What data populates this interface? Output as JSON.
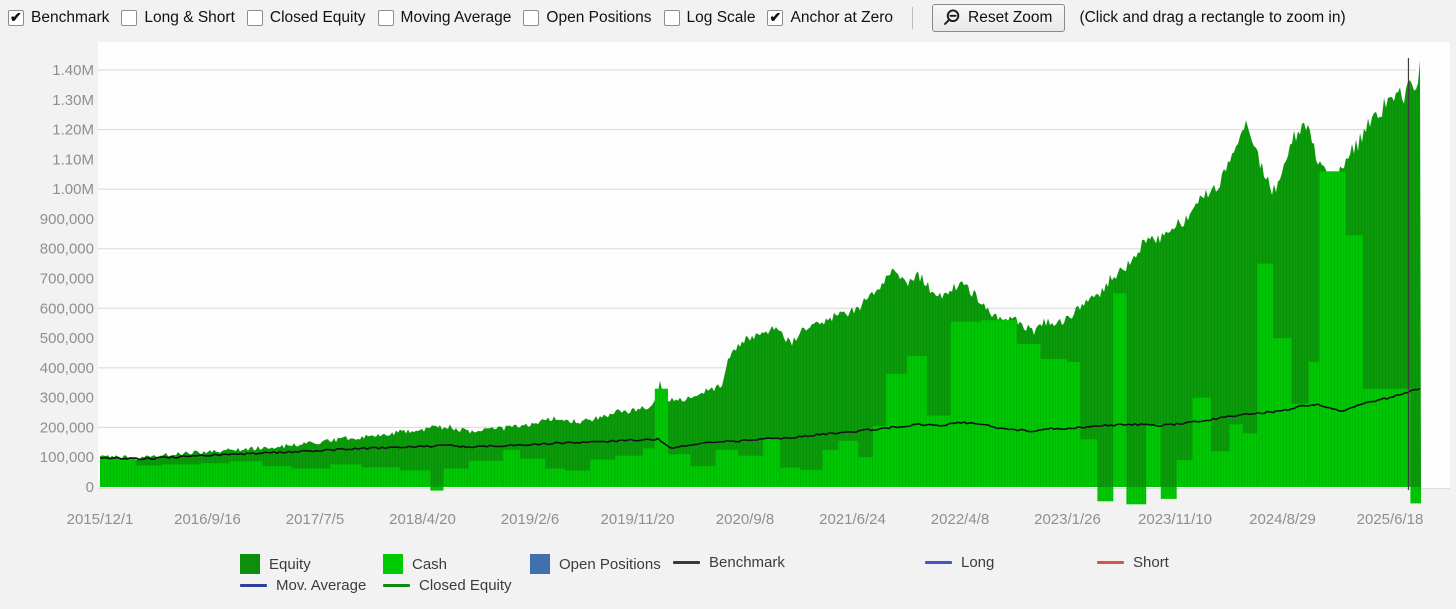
{
  "toolbar": {
    "checkboxes": [
      {
        "id": "benchmark",
        "label": "Benchmark",
        "checked": true
      },
      {
        "id": "long-short",
        "label": "Long & Short",
        "checked": false
      },
      {
        "id": "closed-equity",
        "label": "Closed Equity",
        "checked": false
      },
      {
        "id": "moving-average",
        "label": "Moving Average",
        "checked": false
      },
      {
        "id": "open-positions",
        "label": "Open Positions",
        "checked": false
      },
      {
        "id": "log-scale",
        "label": "Log Scale",
        "checked": false
      },
      {
        "id": "anchor-at-zero",
        "label": "Anchor at Zero",
        "checked": true
      }
    ],
    "reset_zoom": {
      "label": "Reset Zoom"
    },
    "hint": "(Click and drag a rectangle to zoom in)"
  },
  "chart_data": {
    "type": "area",
    "title": "",
    "grid": "horizontal, every 200,000",
    "y_axis": {
      "min": 0,
      "max": 1400000,
      "ticks": [
        {
          "v": 0,
          "label": "0"
        },
        {
          "v": 100000,
          "label": "100,000"
        },
        {
          "v": 200000,
          "label": "200,000"
        },
        {
          "v": 300000,
          "label": "300,000"
        },
        {
          "v": 400000,
          "label": "400,000"
        },
        {
          "v": 500000,
          "label": "500,000"
        },
        {
          "v": 600000,
          "label": "600,000"
        },
        {
          "v": 700000,
          "label": "700,000"
        },
        {
          "v": 800000,
          "label": "800,000"
        },
        {
          "v": 900000,
          "label": "900,000"
        },
        {
          "v": 1000000,
          "label": "1.00M"
        },
        {
          "v": 1100000,
          "label": "1.10M"
        },
        {
          "v": 1200000,
          "label": "1.20M"
        },
        {
          "v": 1300000,
          "label": "1.30M"
        },
        {
          "v": 1400000,
          "label": "1.40M"
        }
      ]
    },
    "x_axis": {
      "tick_labels": [
        "2015/12/1",
        "2016/9/16",
        "2017/7/5",
        "2018/4/20",
        "2019/2/6",
        "2019/11/20",
        "2020/9/8",
        "2021/6/24",
        "2022/4/8",
        "2023/1/26",
        "2023/11/10",
        "2024/8/29",
        "2025/6/18"
      ]
    },
    "series": [
      {
        "name": "Equity",
        "kind": "area",
        "color": "#0a9a0a",
        "points": [
          [
            0,
            100000
          ],
          [
            0.015,
            101000
          ],
          [
            0.03,
            96000
          ],
          [
            0.045,
            106000
          ],
          [
            0.061,
            112000
          ],
          [
            0.081,
            118000
          ],
          [
            0.098,
            124000
          ],
          [
            0.117,
            130000
          ],
          [
            0.136,
            136000
          ],
          [
            0.152,
            142000
          ],
          [
            0.163,
            150000
          ],
          [
            0.178,
            158000
          ],
          [
            0.193,
            166000
          ],
          [
            0.208,
            172000
          ],
          [
            0.223,
            182000
          ],
          [
            0.235,
            188000
          ],
          [
            0.244,
            193000
          ],
          [
            0.254,
            200000
          ],
          [
            0.265,
            202000
          ],
          [
            0.277,
            188000
          ],
          [
            0.288,
            186000
          ],
          [
            0.299,
            194000
          ],
          [
            0.311,
            200000
          ],
          [
            0.322,
            208000
          ],
          [
            0.333,
            218000
          ],
          [
            0.345,
            232000
          ],
          [
            0.355,
            222000
          ],
          [
            0.364,
            216000
          ],
          [
            0.373,
            228000
          ],
          [
            0.383,
            238000
          ],
          [
            0.392,
            252000
          ],
          [
            0.403,
            258000
          ],
          [
            0.413,
            266000
          ],
          [
            0.42,
            285000
          ],
          [
            0.424,
            350000
          ],
          [
            0.429,
            300000
          ],
          [
            0.436,
            288000
          ],
          [
            0.445,
            298000
          ],
          [
            0.455,
            315000
          ],
          [
            0.464,
            330000
          ],
          [
            0.471,
            345000
          ],
          [
            0.476,
            430000
          ],
          [
            0.482,
            470000
          ],
          [
            0.489,
            495000
          ],
          [
            0.496,
            512000
          ],
          [
            0.504,
            520000
          ],
          [
            0.511,
            528000
          ],
          [
            0.519,
            500000
          ],
          [
            0.524,
            482000
          ],
          [
            0.53,
            530000
          ],
          [
            0.538,
            545000
          ],
          [
            0.547,
            558000
          ],
          [
            0.557,
            572000
          ],
          [
            0.564,
            580000
          ],
          [
            0.57,
            592000
          ],
          [
            0.577,
            615000
          ],
          [
            0.585,
            650000
          ],
          [
            0.592,
            690000
          ],
          [
            0.601,
            740000
          ],
          [
            0.606,
            715000
          ],
          [
            0.612,
            690000
          ],
          [
            0.617,
            715000
          ],
          [
            0.623,
            700000
          ],
          [
            0.629,
            665000
          ],
          [
            0.635,
            640000
          ],
          [
            0.641,
            655000
          ],
          [
            0.648,
            670000
          ],
          [
            0.653,
            700000
          ],
          [
            0.659,
            660000
          ],
          [
            0.665,
            625000
          ],
          [
            0.671,
            595000
          ],
          [
            0.678,
            580000
          ],
          [
            0.684,
            560000
          ],
          [
            0.691,
            572000
          ],
          [
            0.698,
            545000
          ],
          [
            0.706,
            518000
          ],
          [
            0.714,
            560000
          ],
          [
            0.721,
            548000
          ],
          [
            0.729,
            556000
          ],
          [
            0.735,
            565000
          ],
          [
            0.742,
            612000
          ],
          [
            0.75,
            640000
          ],
          [
            0.758,
            652000
          ],
          [
            0.765,
            700000
          ],
          [
            0.773,
            722000
          ],
          [
            0.78,
            762000
          ],
          [
            0.788,
            812000
          ],
          [
            0.795,
            842000
          ],
          [
            0.802,
            825000
          ],
          [
            0.809,
            848000
          ],
          [
            0.814,
            872000
          ],
          [
            0.822,
            902000
          ],
          [
            0.83,
            952000
          ],
          [
            0.837,
            982000
          ],
          [
            0.845,
            1012000
          ],
          [
            0.852,
            1055000
          ],
          [
            0.86,
            1125000
          ],
          [
            0.867,
            1218000
          ],
          [
            0.873,
            1160000
          ],
          [
            0.877,
            1105000
          ],
          [
            0.883,
            1048000
          ],
          [
            0.888,
            985000
          ],
          [
            0.894,
            1065000
          ],
          [
            0.899,
            1125000
          ],
          [
            0.905,
            1185000
          ],
          [
            0.911,
            1235000
          ],
          [
            0.917,
            1180000
          ],
          [
            0.923,
            1085000
          ],
          [
            0.929,
            1050000
          ],
          [
            0.935,
            1028000
          ],
          [
            0.941,
            1075000
          ],
          [
            0.947,
            1120000
          ],
          [
            0.953,
            1160000
          ],
          [
            0.959,
            1205000
          ],
          [
            0.965,
            1240000
          ],
          [
            0.971,
            1270000
          ],
          [
            0.977,
            1310000
          ],
          [
            0.983,
            1330000
          ],
          [
            0.988,
            1298000
          ],
          [
            0.991,
            1345000
          ],
          [
            0.995,
            1320000
          ],
          [
            0.998,
            1380000
          ],
          [
            1,
            1420000
          ]
        ]
      },
      {
        "name": "Cash",
        "kind": "bars",
        "color": "#00c603",
        "segments": [
          [
            0,
            0.027,
            95000
          ],
          [
            0.027,
            0.047,
            72000
          ],
          [
            0.047,
            0.076,
            76000
          ],
          [
            0.076,
            0.098,
            80000
          ],
          [
            0.098,
            0.123,
            86000
          ],
          [
            0.123,
            0.145,
            70000
          ],
          [
            0.145,
            0.174,
            62000
          ],
          [
            0.174,
            0.198,
            76000
          ],
          [
            0.198,
            0.227,
            66000
          ],
          [
            0.227,
            0.25,
            56000
          ],
          [
            0.25,
            0.26,
            -12000
          ],
          [
            0.26,
            0.279,
            62000
          ],
          [
            0.279,
            0.305,
            88000
          ],
          [
            0.305,
            0.318,
            125000
          ],
          [
            0.318,
            0.337,
            95000
          ],
          [
            0.337,
            0.352,
            62000
          ],
          [
            0.352,
            0.371,
            55000
          ],
          [
            0.371,
            0.39,
            92000
          ],
          [
            0.39,
            0.411,
            105000
          ],
          [
            0.411,
            0.42,
            130000
          ],
          [
            0.42,
            0.43,
            330000
          ],
          [
            0.43,
            0.447,
            110000
          ],
          [
            0.447,
            0.466,
            70000
          ],
          [
            0.466,
            0.483,
            125000
          ],
          [
            0.483,
            0.502,
            105000
          ],
          [
            0.502,
            0.515,
            165000
          ],
          [
            0.515,
            0.53,
            65000
          ],
          [
            0.53,
            0.547,
            58000
          ],
          [
            0.547,
            0.559,
            125000
          ],
          [
            0.559,
            0.574,
            155000
          ],
          [
            0.574,
            0.585,
            100000
          ],
          [
            0.585,
            0.595,
            205000
          ],
          [
            0.595,
            0.611,
            380000
          ],
          [
            0.611,
            0.626,
            440000
          ],
          [
            0.626,
            0.644,
            240000
          ],
          [
            0.644,
            0.667,
            555000
          ],
          [
            0.667,
            0.694,
            560000
          ],
          [
            0.694,
            0.712,
            480000
          ],
          [
            0.712,
            0.732,
            430000
          ],
          [
            0.732,
            0.742,
            420000
          ],
          [
            0.742,
            0.755,
            160000
          ],
          [
            0.755,
            0.767,
            -48000
          ],
          [
            0.767,
            0.777,
            650000
          ],
          [
            0.777,
            0.792,
            -58000
          ],
          [
            0.792,
            0.803,
            210000
          ],
          [
            0.803,
            0.815,
            -40000
          ],
          [
            0.815,
            0.827,
            90000
          ],
          [
            0.827,
            0.841,
            300000
          ],
          [
            0.841,
            0.855,
            120000
          ],
          [
            0.855,
            0.865,
            210000
          ],
          [
            0.865,
            0.876,
            180000
          ],
          [
            0.876,
            0.888,
            750000
          ],
          [
            0.888,
            0.902,
            500000
          ],
          [
            0.902,
            0.915,
            280000
          ],
          [
            0.915,
            0.923,
            420000
          ],
          [
            0.923,
            0.943,
            1060000
          ],
          [
            0.943,
            0.956,
            845000
          ],
          [
            0.956,
            0.982,
            330000
          ],
          [
            0.982,
            0.992,
            330000
          ],
          [
            0.992,
            1,
            -55000
          ]
        ]
      },
      {
        "name": "Benchmark",
        "kind": "line",
        "color": "#141414",
        "points": [
          [
            0,
            100000
          ],
          [
            0.03,
            94000
          ],
          [
            0.061,
            101000
          ],
          [
            0.081,
            107000
          ],
          [
            0.114,
            112000
          ],
          [
            0.163,
            122000
          ],
          [
            0.205,
            130000
          ],
          [
            0.244,
            136000
          ],
          [
            0.265,
            140000
          ],
          [
            0.28,
            133000
          ],
          [
            0.303,
            139000
          ],
          [
            0.326,
            143000
          ],
          [
            0.348,
            148000
          ],
          [
            0.379,
            152000
          ],
          [
            0.407,
            158000
          ],
          [
            0.423,
            161000
          ],
          [
            0.433,
            128000
          ],
          [
            0.447,
            142000
          ],
          [
            0.47,
            152000
          ],
          [
            0.489,
            156000
          ],
          [
            0.523,
            166000
          ],
          [
            0.57,
            186000
          ],
          [
            0.591,
            196000
          ],
          [
            0.601,
            201000
          ],
          [
            0.621,
            211000
          ],
          [
            0.636,
            206000
          ],
          [
            0.652,
            216000
          ],
          [
            0.667,
            211000
          ],
          [
            0.682,
            196000
          ],
          [
            0.697,
            191000
          ],
          [
            0.706,
            186000
          ],
          [
            0.716,
            196000
          ],
          [
            0.733,
            196000
          ],
          [
            0.758,
            206000
          ],
          [
            0.78,
            211000
          ],
          [
            0.803,
            206000
          ],
          [
            0.814,
            211000
          ],
          [
            0.833,
            221000
          ],
          [
            0.848,
            231000
          ],
          [
            0.867,
            246000
          ],
          [
            0.886,
            251000
          ],
          [
            0.896,
            256000
          ],
          [
            0.909,
            271000
          ],
          [
            0.924,
            276000
          ],
          [
            0.939,
            253000
          ],
          [
            0.951,
            271000
          ],
          [
            0.962,
            286000
          ],
          [
            0.977,
            301000
          ],
          [
            0.989,
            316000
          ],
          [
            1,
            332000
          ]
        ]
      }
    ],
    "end_marker": {
      "f": 0.9905
    }
  },
  "legend": {
    "rows": [
      [
        {
          "id": "equity",
          "label": "Equity",
          "swatch": "square",
          "color": "#0d8e0d"
        },
        {
          "id": "cash",
          "label": "Cash",
          "swatch": "square",
          "color": "#00ca00"
        },
        {
          "id": "open-positions",
          "label": "Open Positions",
          "swatch": "square",
          "color": "#3f72ad"
        },
        {
          "id": "benchmark",
          "label": "Benchmark",
          "swatch": "line",
          "color": "#3a3a3a"
        },
        {
          "id": "long",
          "label": "Long",
          "swatch": "line",
          "color": "#4656c4"
        },
        {
          "id": "short",
          "label": "Short",
          "swatch": "line",
          "color": "#d9534f"
        }
      ],
      [
        {
          "id": "mov-average",
          "label": "Mov. Average",
          "swatch": "line",
          "color": "#2e3f9e"
        },
        {
          "id": "closed-equity",
          "label": "Closed Equity",
          "swatch": "line",
          "color": "#128b12"
        }
      ]
    ]
  }
}
